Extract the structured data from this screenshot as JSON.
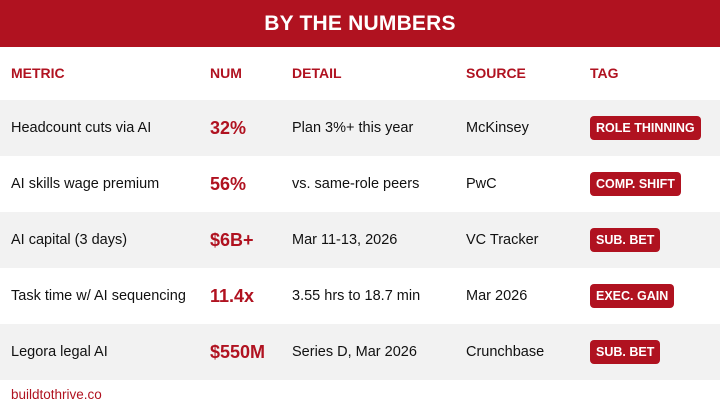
{
  "header": {
    "title": "BY THE NUMBERS"
  },
  "columns": {
    "metric": "METRIC",
    "num": "NUM",
    "detail": "DETAIL",
    "source": "SOURCE",
    "tag": "TAG"
  },
  "rows": [
    {
      "metric": "Headcount cuts via AI",
      "num": "32%",
      "detail": "Plan 3%+ this year",
      "source": "McKinsey",
      "tag": "ROLE THINNING"
    },
    {
      "metric": "AI skills wage premium",
      "num": "56%",
      "detail": "vs. same-role peers",
      "source": "PwC",
      "tag": "COMP. SHIFT"
    },
    {
      "metric": "AI capital (3 days)",
      "num": "$6B+",
      "detail": "Mar 11-13, 2026",
      "source": "VC Tracker",
      "tag": "SUB. BET"
    },
    {
      "metric": "Task time w/ AI sequencing",
      "num": "11.4x",
      "detail": "3.55 hrs to 18.7 min",
      "source": "Mar 2026",
      "tag": "EXEC. GAIN"
    },
    {
      "metric": "Legora legal AI",
      "num": "$550M",
      "detail": "Series D, Mar 2026",
      "source": "Crunchbase",
      "tag": "SUB. BET"
    }
  ],
  "footer": {
    "text": "buildtothrive.co"
  },
  "colors": {
    "accent": "#b01220",
    "row_shade": "#f2f2f2",
    "text": "#111111"
  }
}
